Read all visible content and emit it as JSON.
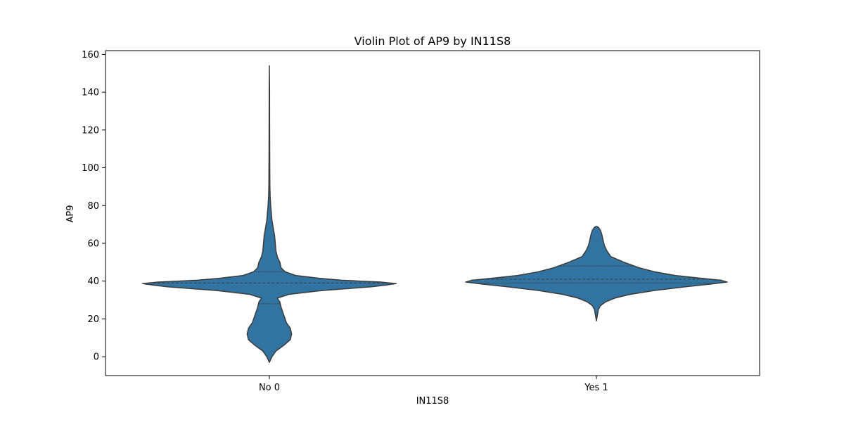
{
  "chart_data": {
    "type": "violin",
    "title": "Violin Plot of AP9 by IN11S8",
    "xlabel": "IN11S8",
    "ylabel": "AP9",
    "categories": [
      "No 0",
      "Yes 1"
    ],
    "ylim": [
      -10,
      162
    ],
    "yticks": [
      0,
      20,
      40,
      60,
      80,
      100,
      120,
      140,
      160
    ],
    "grid": false,
    "fill_color": "#3274a1",
    "edge_color": "#3b3b3b",
    "violins": [
      {
        "category": "No 0",
        "min": -3,
        "max": 154,
        "quartiles": [
          28,
          39,
          45
        ],
        "density_profile": [
          [
            -3,
            0.0
          ],
          [
            0,
            0.02
          ],
          [
            3,
            0.05
          ],
          [
            6,
            0.11
          ],
          [
            9,
            0.16
          ],
          [
            12,
            0.17
          ],
          [
            15,
            0.16
          ],
          [
            18,
            0.13
          ],
          [
            22,
            0.11
          ],
          [
            26,
            0.09
          ],
          [
            29,
            0.08
          ],
          [
            31,
            0.06
          ],
          [
            33,
            0.15
          ],
          [
            35,
            0.4
          ],
          [
            37,
            0.78
          ],
          [
            38,
            0.9
          ],
          [
            38.7,
            0.97
          ],
          [
            39.5,
            0.85
          ],
          [
            40.5,
            0.55
          ],
          [
            41.5,
            0.38
          ],
          [
            43,
            0.2
          ],
          [
            45,
            0.12
          ],
          [
            47,
            0.09
          ],
          [
            50,
            0.08
          ],
          [
            53,
            0.06
          ],
          [
            56,
            0.05
          ],
          [
            60,
            0.045
          ],
          [
            64,
            0.04
          ],
          [
            68,
            0.03
          ],
          [
            72,
            0.02
          ],
          [
            76,
            0.015
          ],
          [
            80,
            0.01
          ],
          [
            85,
            0.006
          ],
          [
            90,
            0.004
          ],
          [
            100,
            0.003
          ],
          [
            120,
            0.002
          ],
          [
            140,
            0.0015
          ],
          [
            154,
            0.0
          ]
        ]
      },
      {
        "category": "Yes 1",
        "min": 19,
        "max": 69,
        "quartiles": [
          39,
          41,
          48
        ],
        "density_profile": [
          [
            19,
            0.0
          ],
          [
            21,
            0.005
          ],
          [
            23,
            0.01
          ],
          [
            25,
            0.015
          ],
          [
            27,
            0.03
          ],
          [
            29,
            0.07
          ],
          [
            31,
            0.14
          ],
          [
            33,
            0.26
          ],
          [
            35,
            0.44
          ],
          [
            37,
            0.68
          ],
          [
            38.5,
            0.88
          ],
          [
            39.5,
            1.0
          ],
          [
            40.5,
            0.95
          ],
          [
            41.5,
            0.8
          ],
          [
            43,
            0.6
          ],
          [
            45,
            0.44
          ],
          [
            47,
            0.33
          ],
          [
            50,
            0.21
          ],
          [
            53,
            0.11
          ],
          [
            56,
            0.08
          ],
          [
            59,
            0.06
          ],
          [
            62,
            0.05
          ],
          [
            65,
            0.04
          ],
          [
            67,
            0.03
          ],
          [
            68.5,
            0.015
          ],
          [
            69,
            0.0
          ]
        ]
      }
    ]
  }
}
